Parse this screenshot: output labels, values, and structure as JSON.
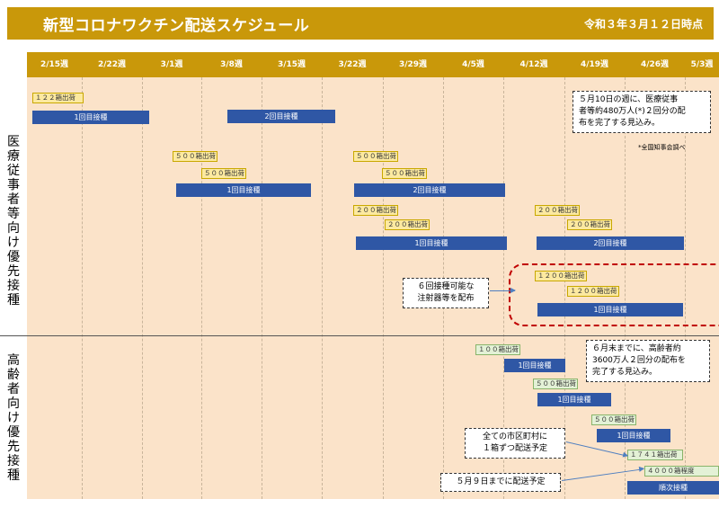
{
  "header": {
    "title": "新型コロナワクチン配送スケジュール",
    "as_of": "令和３年３月１２日時点"
  },
  "weeks": [
    "2/15週",
    "2/22週",
    "3/1週",
    "3/8週",
    "3/15週",
    "3/22週",
    "3/29週",
    "4/5週",
    "4/12週",
    "4/19週",
    "4/26週",
    "5/3週"
  ],
  "sections": {
    "medical": "医療従事者等向け優先接種",
    "elderly": "高齢者向け優先接種"
  },
  "medical": {
    "ship_122": "１２２箱出荷",
    "ship_500a": "５００箱出荷",
    "ship_500b": "５００箱出荷",
    "ship_500c": "５００箱出荷",
    "ship_500d": "５００箱出荷",
    "ship_200a": "２００箱出荷",
    "ship_200b": "２００箱出荷",
    "ship_200c": "２００箱出荷",
    "ship_200d": "２００箱出荷",
    "ship_1200a": "１２００箱出荷",
    "ship_1200b": "１２００箱出荷",
    "bar1": "1回目接種",
    "bar2": "2回目接種",
    "bar3": "1回目接種",
    "bar4": "2回目接種",
    "bar5": "1回目接種",
    "bar6": "2回目接種",
    "bar7": "1回目接種",
    "note_may10_l1": "５月10日の週に、医療従事",
    "note_may10_l2": "者等約480万人(*)２回分の配",
    "note_may10_l3": "布を完了する見込み。",
    "survey": "*全国知事会調べ",
    "note_syringe_l1": "６回接種可能な",
    "note_syringe_l2": "注射器等を配布"
  },
  "elderly": {
    "ship_100": "１００箱出荷",
    "ship_500a": "５００箱出荷",
    "ship_500b": "５００箱出荷",
    "ship_1741": "１７４１箱出荷",
    "ship_4000": "４０００箱程度",
    "bar1": "1回目接種",
    "bar2": "1回目接種",
    "bar3": "1回目接種",
    "bar4": "順次接種",
    "note_june_l1": "６月末までに、高齢者約",
    "note_june_l2": "3600万人２回分の配布を",
    "note_june_l3": "完了する見込み。",
    "note_all_l1": "全ての市区町村に",
    "note_all_l2": "１箱ずつ配送予定",
    "note_may9": "５月９日までに配送予定"
  }
}
